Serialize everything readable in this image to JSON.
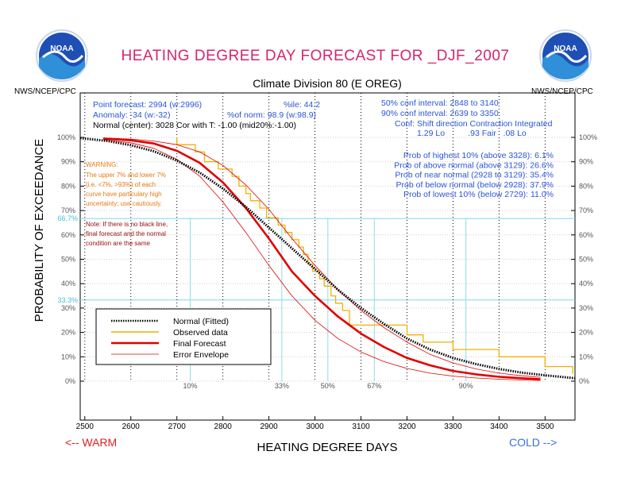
{
  "header": {
    "title": "HEATING DEGREE DAY FORECAST FOR _DJF_2007",
    "subtitle": "Climate Division 80 (E OREG)",
    "org_left": "NWS/NCEP/CPC",
    "org_right": "NWS/NCEP/CPC",
    "logo_text": "NOAA",
    "title_color": "#d6246e"
  },
  "info": {
    "point_forecast": "Point forecast: 2994 (w:2996)",
    "percentile": "%ile: 44.2",
    "anomaly": "Anomaly: -34 (w:-32)",
    "pct_of_norm": "%of norm:  98.9 (w:98.9)",
    "normal_line": "Normal (center): 3028 Cor with T: -1.00 (mid20%:-1.00)",
    "conf50": "50% conf interval: 2848 to 3140",
    "conf90": "90% conf interval: 2639 to 3350",
    "conf_header": "Conf: Shift direction   Contraction   Integrated",
    "conf_values": "1.29 Lo          .93 Fair   .08 Lo",
    "prob_lines": [
      "Prob of highest 10% (above 3328): 6.1%",
      "Prob of above normal (above 3129): 26.6%",
      "Prob of near normal (2928 to 3129): 35.4%",
      "Prob of below normal (below 2928): 37.9%",
      "Prob of lowest 10% (below 2729): 11.0%"
    ]
  },
  "warning": {
    "title": "WARNING:",
    "lines": [
      "The upper 7% and lower 7%",
      "(i.e. <7%, >93%) of each",
      "curve have particulary high",
      "uncertainty; use cautiously."
    ]
  },
  "note": {
    "lines": [
      "Note: If there is no black line,",
      "final forecast and  the normal",
      "condition are the same"
    ]
  },
  "footer": {
    "warm": "<-- WARM",
    "cold": "COLD -->",
    "warm_color": "#e02020",
    "cold_color": "#3a6ee0"
  },
  "chart_data": {
    "type": "line",
    "xlabel": "HEATING DEGREE DAYS",
    "ylabel": "PROBABILITY OF EXCEEDANCE",
    "xlim": [
      2490,
      3565
    ],
    "ylim": [
      0,
      100
    ],
    "x_ticks": [
      2500,
      2600,
      2700,
      2800,
      2900,
      3000,
      3100,
      3200,
      3300,
      3400,
      3500
    ],
    "y_ticks": [
      0,
      10,
      20,
      30,
      40,
      50,
      60,
      70,
      80,
      90,
      100
    ],
    "y_tick_labels": [
      "0%",
      "10%",
      "20%",
      "30%",
      "40%",
      "50%",
      "60%",
      "70%",
      "80%",
      "90%",
      "100%"
    ],
    "ref_lines_y": [
      {
        "value": 66.7,
        "label": "66.7%"
      },
      {
        "value": 33.3,
        "label": "33.3%"
      }
    ],
    "percentile_lines": [
      {
        "label": "10%",
        "x": 2729
      },
      {
        "label": "33%",
        "x": 2928
      },
      {
        "label": "50%",
        "x": 3028
      },
      {
        "label": "67%",
        "x": 3129
      },
      {
        "label": "90%",
        "x": 3328
      }
    ],
    "legend": [
      {
        "label": "Normal (Fitted)",
        "color": "#000000",
        "style": "dotted-thick"
      },
      {
        "label": "Observed data",
        "color": "#f0b000",
        "style": "solid"
      },
      {
        "label": "Final Forecast",
        "color": "#e00000",
        "style": "solid-thick"
      },
      {
        "label": "Error Envelope",
        "color": "#e00000",
        "style": "thin"
      }
    ],
    "series": [
      {
        "name": "Normal (Fitted)",
        "color": "#000000",
        "x": [
          2490,
          2550,
          2600,
          2650,
          2700,
          2750,
          2800,
          2850,
          2900,
          2950,
          3000,
          3050,
          3100,
          3150,
          3200,
          3250,
          3300,
          3350,
          3400,
          3450,
          3500,
          3565
        ],
        "y": [
          99.7,
          98.5,
          96.8,
          94.3,
          90.5,
          85.5,
          79.0,
          71.5,
          63.0,
          54.5,
          46.0,
          37.5,
          30.0,
          23.5,
          17.5,
          13.0,
          9.5,
          7.0,
          5.0,
          3.5,
          2.4,
          1.2
        ]
      },
      {
        "name": "Final Forecast",
        "color": "#e00000",
        "x": [
          2540,
          2600,
          2650,
          2700,
          2750,
          2800,
          2850,
          2900,
          2950,
          3000,
          3050,
          3100,
          3150,
          3200,
          3250,
          3300,
          3350,
          3400,
          3450,
          3490
        ],
        "y": [
          99.5,
          98.8,
          97.5,
          94.5,
          89.5,
          81.5,
          71.0,
          58.5,
          45.0,
          35.0,
          26.5,
          19.5,
          14.0,
          9.5,
          6.5,
          4.2,
          2.8,
          1.8,
          1.2,
          0.8
        ]
      },
      {
        "name": "Error Envelope (upper)",
        "color": "#e00000",
        "x": [
          2540,
          2600,
          2650,
          2700,
          2750,
          2800,
          2850,
          2900,
          2950,
          3000,
          3050,
          3100,
          3150,
          3200,
          3250,
          3300,
          3350,
          3400,
          3450,
          3490
        ],
        "y": [
          99.8,
          99.3,
          98.5,
          97.0,
          94.0,
          88.5,
          80.5,
          70.5,
          58.5,
          47.5,
          37.5,
          29.0,
          22.0,
          16.0,
          11.0,
          7.5,
          5.0,
          3.3,
          2.2,
          1.6
        ]
      },
      {
        "name": "Error Envelope (lower)",
        "color": "#e00000",
        "x": [
          2540,
          2600,
          2650,
          2700,
          2750,
          2800,
          2850,
          2900,
          2950,
          3000,
          3050,
          3100,
          3150,
          3200,
          3250,
          3300,
          3350,
          3400,
          3450,
          3490
        ],
        "y": [
          99.0,
          97.8,
          95.5,
          91.0,
          84.0,
          73.5,
          61.0,
          47.5,
          35.0,
          25.0,
          17.5,
          12.0,
          8.0,
          5.2,
          3.3,
          2.1,
          1.3,
          0.8,
          0.5,
          0.3
        ]
      },
      {
        "name": "Observed data",
        "color": "#f0b000",
        "step": true,
        "x": [
          2700,
          2700,
          2740,
          2740,
          2760,
          2760,
          2790,
          2790,
          2820,
          2820,
          2835,
          2835,
          2850,
          2850,
          2860,
          2860,
          2880,
          2880,
          2895,
          2895,
          2920,
          2920,
          2935,
          2935,
          2950,
          2950,
          2965,
          2965,
          2975,
          2975,
          2985,
          2985,
          2995,
          2995,
          3010,
          3010,
          3020,
          3020,
          3035,
          3035,
          3045,
          3045,
          3060,
          3060,
          3075,
          3075,
          3200,
          3200,
          3235,
          3235,
          3300,
          3300,
          3400,
          3400,
          3500,
          3500,
          3560,
          3560
        ],
        "y": [
          100,
          97,
          97,
          94,
          94,
          90,
          90,
          87,
          87,
          84,
          84,
          80,
          80,
          77,
          77,
          74,
          74,
          71,
          71,
          67,
          67,
          64,
          64,
          61,
          61,
          58,
          58,
          55,
          55,
          52,
          52,
          48,
          48,
          45,
          45,
          42,
          42,
          39,
          39,
          35,
          35,
          32,
          32,
          29,
          29,
          23,
          23,
          19,
          19,
          16,
          16,
          13,
          13,
          10,
          10,
          6,
          6,
          3
        ]
      }
    ]
  }
}
